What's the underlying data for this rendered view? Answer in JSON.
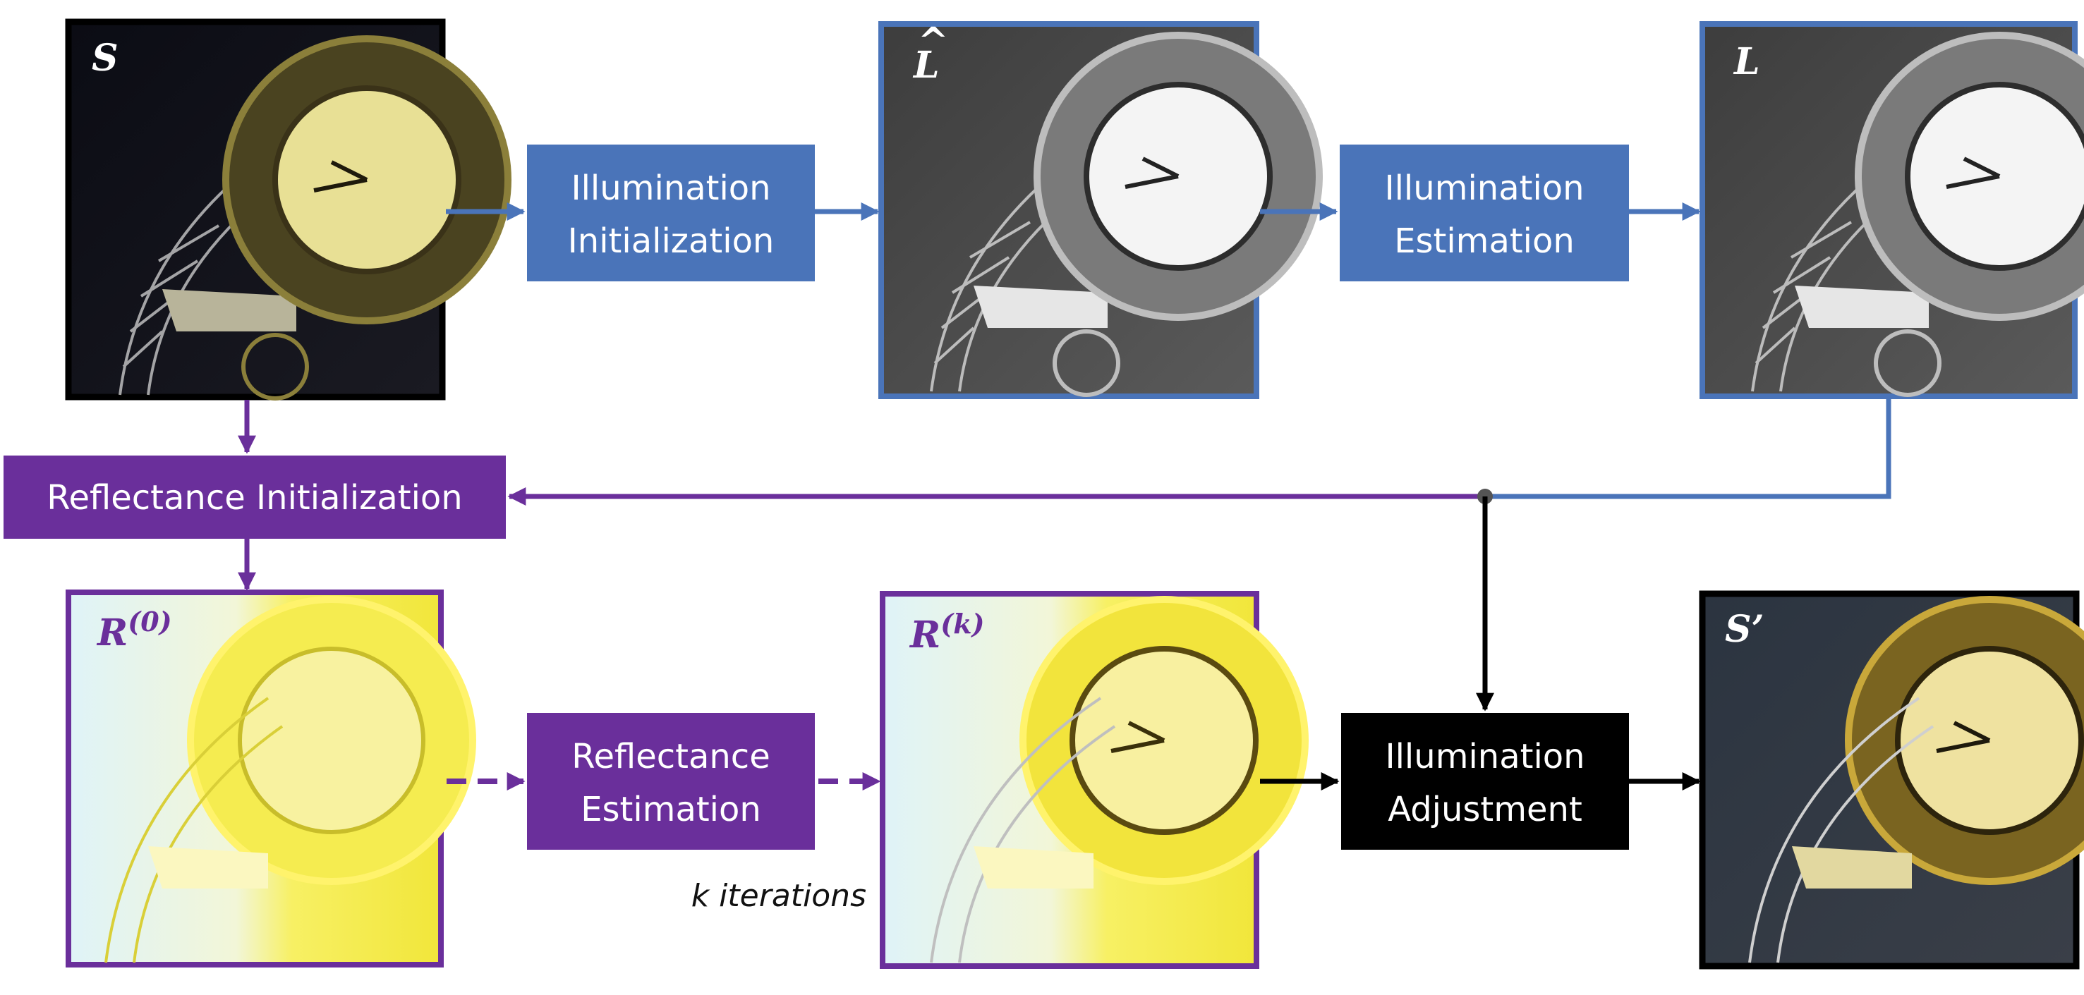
{
  "colors": {
    "blue": "#4a74b9",
    "purple": "#6a2f9b",
    "black": "#000000",
    "node": "#555555"
  },
  "images": {
    "S": {
      "label": "S",
      "desc": "low-light clock tower photo"
    },
    "L_hat": {
      "label": "L",
      "hat": "^",
      "desc": "initial illumination map (grayscale)"
    },
    "L": {
      "label": "L",
      "desc": "estimated illumination map (grayscale)"
    },
    "R0": {
      "label": "R",
      "sup": "(0)",
      "desc": "initial reflectance (bright yellow)"
    },
    "Rk": {
      "label": "R",
      "sup": "(k)",
      "desc": "estimated reflectance (yellow)"
    },
    "S_prime": {
      "label": "S’",
      "desc": "enhanced output photo"
    }
  },
  "boxes": {
    "illum_init": {
      "line1": "Illumination",
      "line2": "Initialization"
    },
    "illum_est": {
      "line1": "Illumination",
      "line2": "Estimation"
    },
    "refl_init": {
      "text": "Reflectance Initialization"
    },
    "refl_est": {
      "line1": "Reflectance",
      "line2": "Estimation"
    },
    "illum_adj": {
      "line1": "Illumination",
      "line2": "Adjustment"
    }
  },
  "note": "k iterations"
}
